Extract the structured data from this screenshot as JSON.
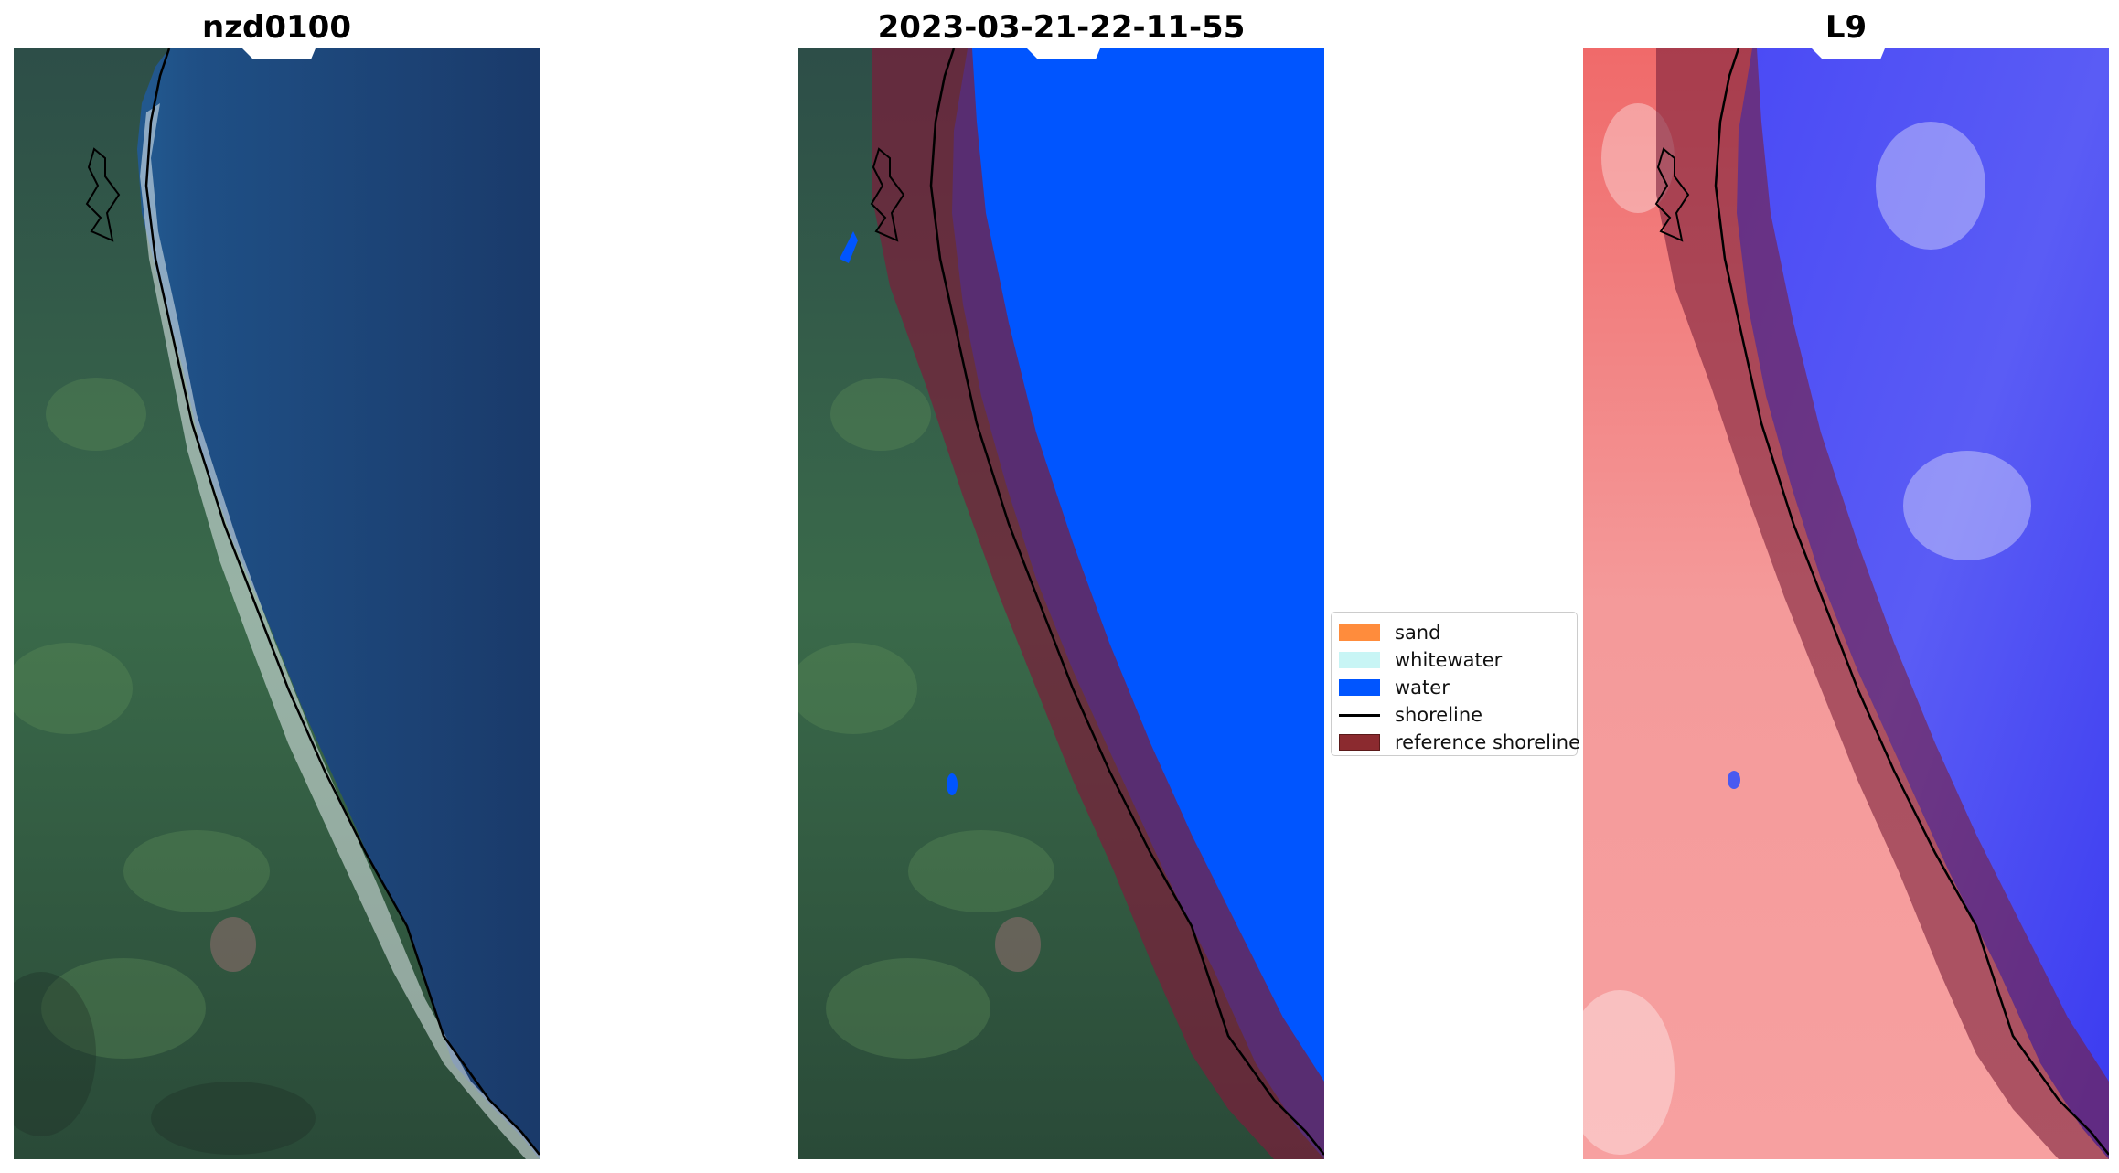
{
  "panels": [
    {
      "title": "nzd0100"
    },
    {
      "title": "2023-03-21-22-11-55"
    },
    {
      "title": "L9"
    }
  ],
  "legend": {
    "items": [
      {
        "label": "sand",
        "kind": "patch",
        "color": "#ff8c3c"
      },
      {
        "label": "whitewater",
        "kind": "patch",
        "color": "#c8f5f5"
      },
      {
        "label": "water",
        "kind": "patch",
        "color": "#0055ff"
      },
      {
        "label": "shoreline",
        "kind": "line",
        "color": "#000000"
      },
      {
        "label": "reference shoreline",
        "kind": "patch",
        "color": "#8b2a2f"
      }
    ]
  },
  "colors": {
    "land_green": "#2f5a46",
    "sea_dark_blue": "#1a3a6a",
    "classified_water": "#0055ff",
    "reference_shoreline_buffer": "#7a1f3a",
    "index_land_red": "#f49090",
    "index_water_blue": "#3a3af0"
  }
}
